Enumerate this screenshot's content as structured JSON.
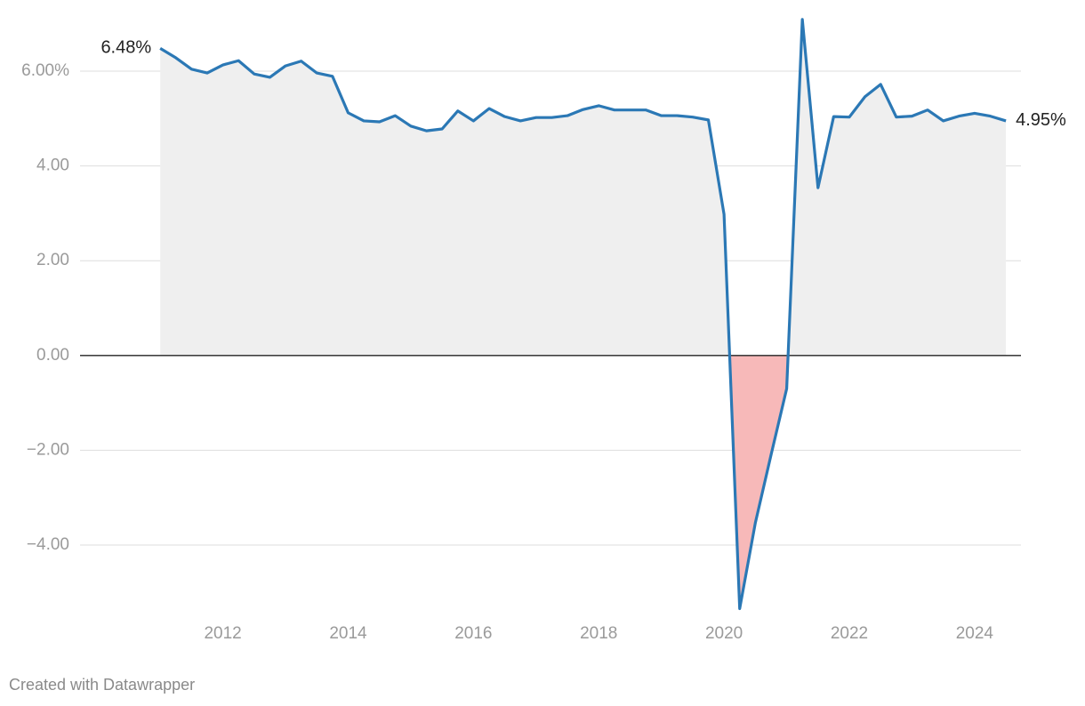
{
  "chart_data": {
    "type": "area-line",
    "credit": "Created with Datawrapper",
    "x": [
      2011,
      2011.25,
      2011.5,
      2011.75,
      2012,
      2012.25,
      2012.5,
      2012.75,
      2013,
      2013.25,
      2013.5,
      2013.75,
      2014,
      2014.25,
      2014.5,
      2014.75,
      2015,
      2015.25,
      2015.5,
      2015.75,
      2016,
      2016.25,
      2016.5,
      2016.75,
      2017,
      2017.25,
      2017.5,
      2017.75,
      2018,
      2018.25,
      2018.5,
      2018.75,
      2019,
      2019.25,
      2019.5,
      2019.75,
      2020,
      2020.25,
      2020.5,
      2020.75,
      2021,
      2021.25,
      2021.5,
      2021.75,
      2022,
      2022.25,
      2022.5,
      2022.75,
      2023,
      2023.25,
      2023.5,
      2023.75,
      2024,
      2024.25,
      2024.5
    ],
    "values": [
      6.48,
      6.28,
      6.04,
      5.96,
      6.13,
      6.22,
      5.94,
      5.87,
      6.11,
      6.21,
      5.96,
      5.89,
      5.12,
      4.95,
      4.93,
      5.06,
      4.84,
      4.74,
      4.78,
      5.16,
      4.95,
      5.21,
      5.04,
      4.95,
      5.02,
      5.02,
      5.06,
      5.19,
      5.27,
      5.18,
      5.18,
      5.18,
      5.06,
      5.06,
      5.03,
      4.97,
      2.98,
      -5.34,
      -3.53,
      -2.1,
      -0.7,
      7.09,
      3.54,
      5.04,
      5.03,
      5.46,
      5.72,
      5.03,
      5.05,
      5.18,
      4.95,
      5.05,
      5.11,
      5.05,
      4.95
    ],
    "value_labels": [
      "6.48%",
      null,
      null,
      null,
      null,
      null,
      null,
      null,
      null,
      null,
      null,
      null,
      null,
      null,
      null,
      null,
      null,
      null,
      null,
      null,
      null,
      null,
      null,
      null,
      null,
      null,
      null,
      null,
      null,
      null,
      null,
      null,
      null,
      null,
      null,
      null,
      null,
      null,
      null,
      null,
      null,
      null,
      null,
      null,
      null,
      null,
      null,
      null,
      null,
      null,
      null,
      null,
      null,
      null,
      "4.95%"
    ],
    "color": "#2b78b5",
    "positive_fill": "#efefef",
    "negative_fill": "#f7b9b9",
    "xlim": [
      2009.72,
      2024.74
    ],
    "xticks": [
      2012,
      2014,
      2016,
      2018,
      2020,
      2022,
      2024
    ],
    "ylim": [
      -5.5,
      7.2
    ],
    "yticks": [
      {
        "value": -4,
        "label": "−4.00"
      },
      {
        "value": -2,
        "label": "−2.00"
      },
      {
        "value": 0,
        "label": "0.00"
      },
      {
        "value": 2,
        "label": "2.00"
      },
      {
        "value": 4,
        "label": "4.00"
      },
      {
        "value": 6,
        "label": "6.00%"
      }
    ],
    "grid": true
  }
}
